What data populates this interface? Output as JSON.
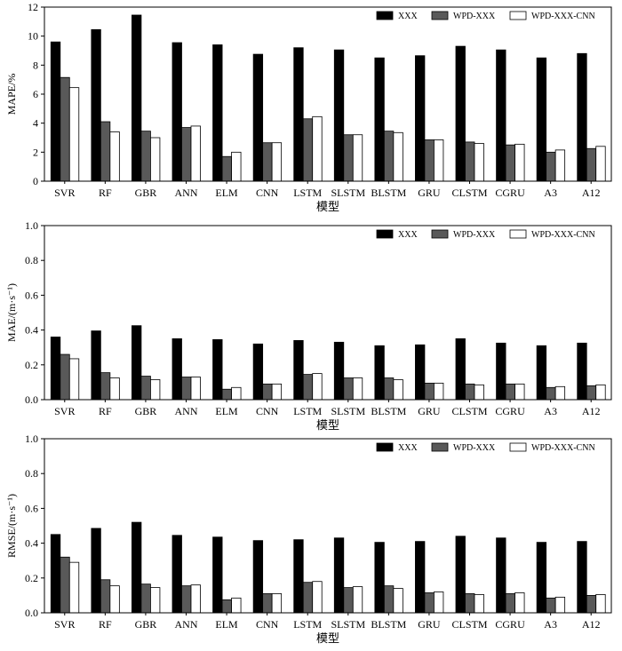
{
  "legend": {
    "position": "top-right"
  },
  "chart_data": [
    {
      "type": "bar",
      "title": "",
      "xlabel": "模型",
      "ylabel": "MAPE/%",
      "ylim": [
        0,
        12
      ],
      "yticks": [
        "0",
        "2",
        "4",
        "6",
        "8",
        "10",
        "12"
      ],
      "categories": [
        "SVR",
        "RF",
        "GBR",
        "ANN",
        "ELM",
        "CNN",
        "LSTM",
        "SLSTM",
        "BLSTM",
        "GRU",
        "CLSTM",
        "CGRU",
        "A3",
        "A12"
      ],
      "series": [
        {
          "name": "XXX",
          "color": "#000000",
          "values": [
            9.6,
            10.45,
            11.45,
            9.55,
            9.4,
            8.75,
            9.2,
            9.05,
            8.5,
            8.65,
            9.3,
            9.05,
            8.5,
            8.8
          ]
        },
        {
          "name": "WPD-XXX",
          "color": "#595959",
          "values": [
            7.15,
            4.1,
            3.45,
            3.7,
            1.7,
            2.65,
            4.3,
            3.2,
            3.45,
            2.85,
            2.7,
            2.5,
            2.0,
            2.25
          ]
        },
        {
          "name": "WPD-XXX-CNN",
          "color": "#ffffff",
          "values": [
            6.45,
            3.4,
            3.0,
            3.8,
            2.0,
            2.65,
            4.45,
            3.2,
            3.35,
            2.85,
            2.6,
            2.55,
            2.15,
            2.4
          ]
        }
      ]
    },
    {
      "type": "bar",
      "title": "",
      "xlabel": "模型",
      "ylabel": "MAE/(m·s⁻¹)",
      "ylim": [
        0,
        1.0
      ],
      "yticks": [
        "0.0",
        "0.2",
        "0.4",
        "0.6",
        "0.8",
        "1.0"
      ],
      "categories": [
        "SVR",
        "RF",
        "GBR",
        "ANN",
        "ELM",
        "CNN",
        "LSTM",
        "SLSTM",
        "BLSTM",
        "GRU",
        "CLSTM",
        "CGRU",
        "A3",
        "A12"
      ],
      "series": [
        {
          "name": "XXX",
          "color": "#000000",
          "values": [
            0.36,
            0.395,
            0.425,
            0.35,
            0.345,
            0.32,
            0.34,
            0.33,
            0.31,
            0.315,
            0.35,
            0.325,
            0.31,
            0.325
          ]
        },
        {
          "name": "WPD-XXX",
          "color": "#595959",
          "values": [
            0.26,
            0.155,
            0.135,
            0.13,
            0.06,
            0.09,
            0.145,
            0.125,
            0.125,
            0.095,
            0.09,
            0.09,
            0.07,
            0.08
          ]
        },
        {
          "name": "WPD-XXX-CNN",
          "color": "#ffffff",
          "values": [
            0.235,
            0.125,
            0.115,
            0.13,
            0.07,
            0.09,
            0.15,
            0.125,
            0.115,
            0.095,
            0.085,
            0.09,
            0.075,
            0.085
          ]
        }
      ]
    },
    {
      "type": "bar",
      "title": "",
      "xlabel": "模型",
      "ylabel": "RMSE/(m·s⁻¹)",
      "ylim": [
        0,
        1.0
      ],
      "yticks": [
        "0.0",
        "0.2",
        "0.4",
        "0.6",
        "0.8",
        "1.0"
      ],
      "categories": [
        "SVR",
        "RF",
        "GBR",
        "ANN",
        "ELM",
        "CNN",
        "LSTM",
        "SLSTM",
        "BLSTM",
        "GRU",
        "CLSTM",
        "CGRU",
        "A3",
        "A12"
      ],
      "series": [
        {
          "name": "XXX",
          "color": "#000000",
          "values": [
            0.45,
            0.485,
            0.52,
            0.445,
            0.435,
            0.415,
            0.42,
            0.43,
            0.405,
            0.41,
            0.44,
            0.43,
            0.405,
            0.41
          ]
        },
        {
          "name": "WPD-XXX",
          "color": "#595959",
          "values": [
            0.32,
            0.19,
            0.165,
            0.155,
            0.075,
            0.11,
            0.175,
            0.145,
            0.155,
            0.115,
            0.11,
            0.11,
            0.085,
            0.1
          ]
        },
        {
          "name": "WPD-XXX-CNN",
          "color": "#ffffff",
          "values": [
            0.29,
            0.155,
            0.145,
            0.16,
            0.085,
            0.11,
            0.18,
            0.15,
            0.14,
            0.12,
            0.105,
            0.115,
            0.09,
            0.105
          ]
        }
      ]
    }
  ]
}
